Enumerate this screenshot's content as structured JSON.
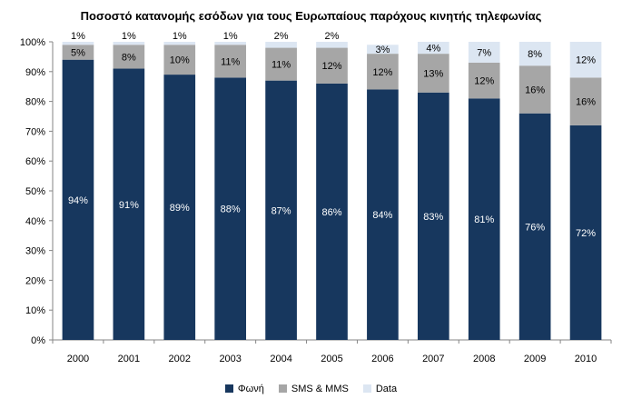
{
  "chart_data": {
    "type": "bar",
    "stacked": true,
    "title": "Ποσοστό κατανομής εσόδων για τους Ευρωπαίους παρόχους κινητής τηλεφωνίας",
    "categories": [
      "2000",
      "2001",
      "2002",
      "2003",
      "2004",
      "2005",
      "2006",
      "2007",
      "2008",
      "2009",
      "2010"
    ],
    "series": [
      {
        "name": "Φωνή",
        "color": "#17375e",
        "label_color": "#ffffff",
        "values": [
          94,
          91,
          89,
          88,
          87,
          86,
          84,
          83,
          81,
          76,
          72
        ]
      },
      {
        "name": "SMS & MMS",
        "color": "#a6a6a6",
        "label_color": "#000000",
        "values": [
          5,
          8,
          10,
          11,
          11,
          12,
          12,
          13,
          12,
          16,
          16
        ]
      },
      {
        "name": "Data",
        "color": "#dce6f2",
        "label_color": "#000000",
        "values": [
          1,
          1,
          1,
          1,
          2,
          2,
          3,
          4,
          7,
          8,
          12
        ]
      }
    ],
    "ylim": [
      0,
      100
    ],
    "yticks": [
      "0%",
      "10%",
      "20%",
      "30%",
      "40%",
      "50%",
      "60%",
      "70%",
      "80%",
      "90%",
      "100%"
    ],
    "value_suffix": "%",
    "xlabel": "",
    "ylabel": "",
    "legend_position": "bottom"
  }
}
